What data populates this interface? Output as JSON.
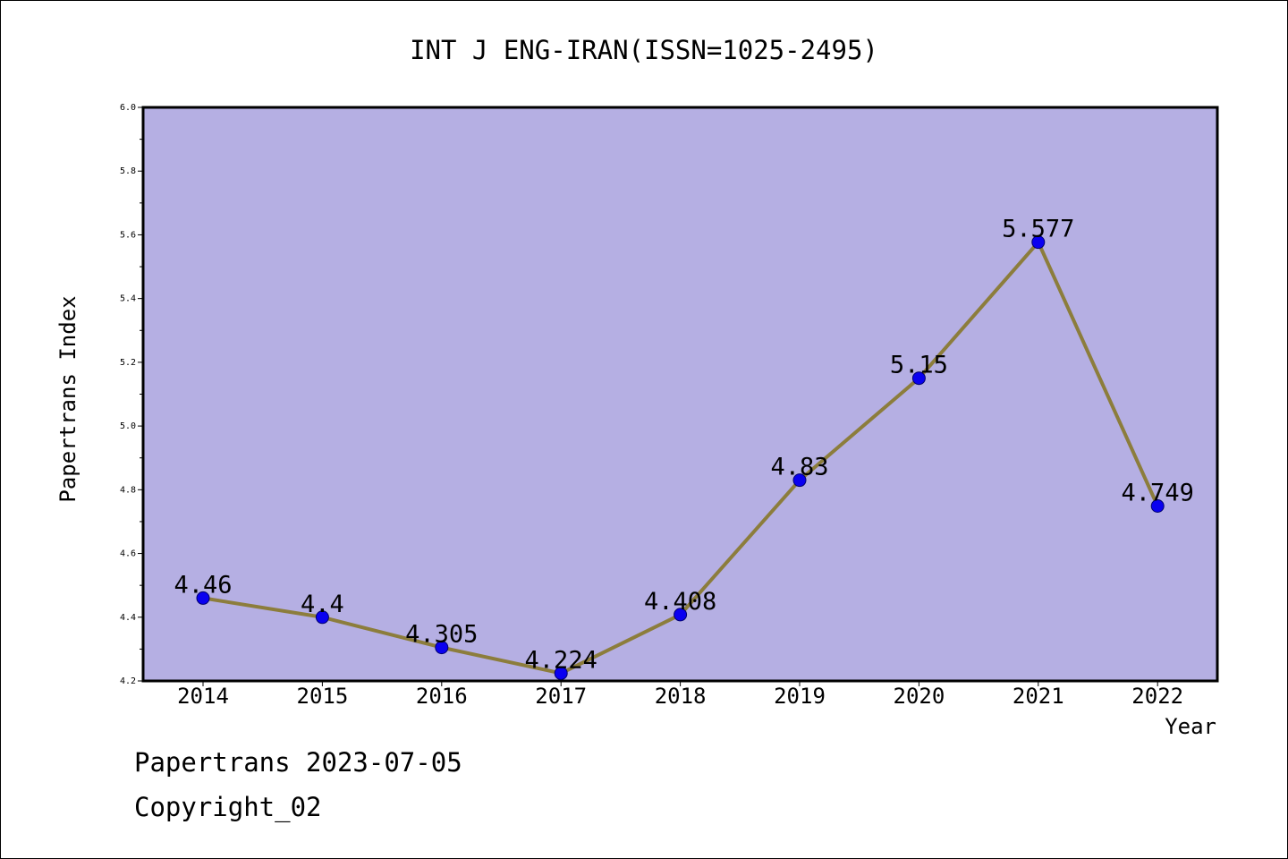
{
  "chart_data": {
    "type": "line",
    "title": "INT J ENG-IRAN(ISSN=1025-2495)",
    "xlabel": "Year",
    "ylabel": "Papertrans Index",
    "x": [
      "2014",
      "2015",
      "2016",
      "2017",
      "2018",
      "2019",
      "2020",
      "2021",
      "2022"
    ],
    "series": [
      {
        "values": [
          4.46,
          4.4,
          4.305,
          4.224,
          4.408,
          4.83,
          5.15,
          5.577,
          4.749
        ],
        "labels": [
          "4.46",
          "4.4",
          "4.305",
          "4.224",
          "4.408",
          "4.83",
          "5.15",
          "5.577",
          "4.749"
        ]
      }
    ],
    "ylim": [
      4.2,
      6.0
    ],
    "yticks": [
      "4.2",
      "4.4",
      "4.6",
      "4.8",
      "5.0",
      "5.2",
      "5.4",
      "5.6",
      "5.8",
      "6.0"
    ],
    "grid": false,
    "legend": "none",
    "colors": {
      "plot_background": "#b5afe3",
      "line": "#8c7d3c",
      "marker": "#0a00f0",
      "marker_edge": "#00006e"
    }
  },
  "footer": {
    "line1": "Papertrans 2023-07-05",
    "line2": "Copyright_02"
  }
}
